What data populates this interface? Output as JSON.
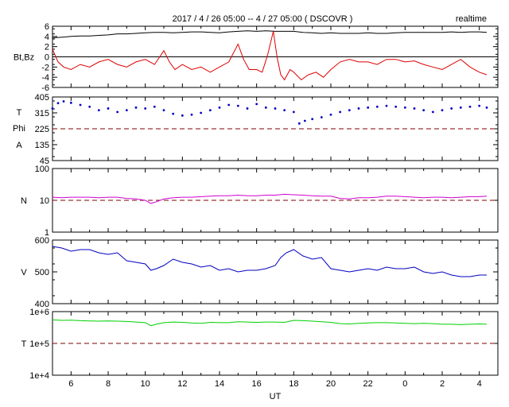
{
  "header": {
    "title": "2017 / 4 / 26   05:00 --  4 / 27  05:00 ( DSCOVR )",
    "status": "realtime"
  },
  "colors": {
    "bt": "#000000",
    "bz": "#e00000",
    "temp_series": "#0000c0",
    "density": "#d000d0",
    "speed": "#0000c0",
    "temperature": "#00d000",
    "reference_line": "#800000"
  },
  "chart_data": [
    {
      "type": "line",
      "panel": "magnetic-field",
      "ylabel": "Bt,Bz",
      "ylim": [
        -6,
        6
      ],
      "yticks": [
        "6",
        "4",
        "2",
        "0",
        "-2",
        "-4",
        "-6"
      ],
      "reference_y": 0,
      "series": [
        {
          "key": "bt",
          "x": [
            5.0,
            5.3,
            5.7,
            6.0,
            6.5,
            7.0,
            7.5,
            8.0,
            8.5,
            9.0,
            9.5,
            10.0,
            10.5,
            11.0,
            11.5,
            12.0,
            12.5,
            13.0,
            13.5,
            14.0,
            14.5,
            15.0,
            15.5,
            16.0,
            16.5,
            17.0,
            17.5,
            18.0,
            18.5,
            19.0,
            19.5,
            20.0,
            20.5,
            21.0,
            21.5,
            22.0,
            22.5,
            23.0,
            23.5,
            24.0,
            24.5,
            25.0,
            25.5,
            26.0,
            26.5,
            27.0,
            27.5,
            28.0,
            28.4
          ],
          "values": [
            3.7,
            3.8,
            3.9,
            4.0,
            4.1,
            4.1,
            4.2,
            4.3,
            4.5,
            4.5,
            4.6,
            4.7,
            4.8,
            4.8,
            4.7,
            4.8,
            4.9,
            4.9,
            4.8,
            4.7,
            4.9,
            5.0,
            5.1,
            5.0,
            5.1,
            5.0,
            5.0,
            5.0,
            4.8,
            4.7,
            4.6,
            4.7,
            4.6,
            4.6,
            4.6,
            4.7,
            4.6,
            4.6,
            4.7,
            4.8,
            4.8,
            4.8,
            4.8,
            4.8,
            4.9,
            4.8,
            4.9,
            4.9,
            4.8
          ]
        },
        {
          "key": "bz",
          "x": [
            5.0,
            5.3,
            5.6,
            6.0,
            6.5,
            7.0,
            7.5,
            8.0,
            8.5,
            9.0,
            9.5,
            10.0,
            10.5,
            11.0,
            11.3,
            11.6,
            12.0,
            12.5,
            13.0,
            13.5,
            14.0,
            14.5,
            15.0,
            15.3,
            15.6,
            16.0,
            16.3,
            16.6,
            16.9,
            17.1,
            17.3,
            17.5,
            17.8,
            18.0,
            18.4,
            18.8,
            19.2,
            19.6,
            20.0,
            20.5,
            21.0,
            21.5,
            22.0,
            22.5,
            23.0,
            23.5,
            24.0,
            24.5,
            25.0,
            25.5,
            26.0,
            26.5,
            27.0,
            27.5,
            28.0,
            28.4
          ],
          "values": [
            1.5,
            -1.0,
            -2.0,
            -2.5,
            -1.5,
            -2.0,
            -1.0,
            -0.5,
            -1.5,
            -2.0,
            -1.0,
            -0.5,
            -1.5,
            1.2,
            -1.0,
            -2.5,
            -1.5,
            -2.5,
            -2.0,
            -3.0,
            -2.0,
            -1.0,
            2.5,
            -0.5,
            -2.5,
            -2.5,
            -3.0,
            0.5,
            5.0,
            0.0,
            -3.5,
            -4.5,
            -2.5,
            -3.0,
            -4.5,
            -3.5,
            -3.0,
            -4.0,
            -2.5,
            -1.0,
            -0.5,
            -1.0,
            -1.0,
            -1.5,
            -0.5,
            -0.5,
            -1.0,
            -0.8,
            -1.5,
            -2.0,
            -2.5,
            -1.5,
            -0.5,
            -2.0,
            -3.0,
            -3.5
          ]
        }
      ]
    },
    {
      "type": "scatter",
      "panel": "temperature-phi",
      "ylabel_lines": [
        "T",
        "Phi",
        "A"
      ],
      "ylim": [
        45,
        405
      ],
      "yticks": [
        "405",
        "315",
        "225",
        "135",
        "45"
      ],
      "reference_y": 225,
      "series": [
        {
          "key": "temp_series",
          "x": [
            5.0,
            5.3,
            5.6,
            6.0,
            6.5,
            7.0,
            7.5,
            8.0,
            8.5,
            9.0,
            9.5,
            10.0,
            10.5,
            11.0,
            11.5,
            12.0,
            12.5,
            13.0,
            13.5,
            14.0,
            14.5,
            15.0,
            15.5,
            16.0,
            16.5,
            17.0,
            17.5,
            18.0,
            18.3,
            18.6,
            19.0,
            19.5,
            20.0,
            20.5,
            21.0,
            21.5,
            22.0,
            22.5,
            23.0,
            23.5,
            24.0,
            24.5,
            25.0,
            25.5,
            26.0,
            26.5,
            27.0,
            27.5,
            28.0,
            28.4
          ],
          "values": [
            340,
            370,
            380,
            372,
            360,
            350,
            330,
            340,
            320,
            330,
            345,
            340,
            350,
            330,
            310,
            300,
            305,
            315,
            330,
            345,
            360,
            355,
            340,
            365,
            345,
            340,
            330,
            320,
            255,
            270,
            280,
            290,
            305,
            320,
            330,
            340,
            345,
            350,
            355,
            350,
            345,
            340,
            330,
            320,
            330,
            340,
            345,
            350,
            355,
            345
          ]
        }
      ]
    },
    {
      "type": "line",
      "panel": "density",
      "ylabel": "N",
      "scale": "log",
      "ylim": [
        1,
        100
      ],
      "yticks": [
        "100",
        "10",
        "1"
      ],
      "reference_y": 10,
      "series": [
        {
          "key": "density",
          "x": [
            5.0,
            5.5,
            6.0,
            6.5,
            7.0,
            7.5,
            8.0,
            8.5,
            9.0,
            9.5,
            10.0,
            10.3,
            10.6,
            11.0,
            11.5,
            12.0,
            12.5,
            13.0,
            13.5,
            14.0,
            14.5,
            15.0,
            15.5,
            16.0,
            16.5,
            17.0,
            17.5,
            18.0,
            18.5,
            19.0,
            19.5,
            20.0,
            20.5,
            21.0,
            21.5,
            22.0,
            22.5,
            23.0,
            23.5,
            24.0,
            24.5,
            25.0,
            25.5,
            26.0,
            26.5,
            27.0,
            27.5,
            28.0,
            28.4
          ],
          "values": [
            12.5,
            12.0,
            12.5,
            12.5,
            12.5,
            12.0,
            12.5,
            12.5,
            11.5,
            11.0,
            10.0,
            8.0,
            9.0,
            11.0,
            12.0,
            12.5,
            12.5,
            13.0,
            13.5,
            14.0,
            14.0,
            14.5,
            14.0,
            14.0,
            14.5,
            14.5,
            15.5,
            15.0,
            14.5,
            14.0,
            13.5,
            13.5,
            11.5,
            11.0,
            12.0,
            12.0,
            12.5,
            13.5,
            13.5,
            13.0,
            12.5,
            12.0,
            12.5,
            12.5,
            12.0,
            12.5,
            13.0,
            13.0,
            13.5
          ]
        }
      ]
    },
    {
      "type": "line",
      "panel": "speed",
      "ylabel": "V",
      "ylim": [
        400,
        600
      ],
      "yticks": [
        "600",
        "500",
        "400"
      ],
      "series": [
        {
          "key": "speed",
          "x": [
            5.0,
            5.5,
            6.0,
            6.5,
            7.0,
            7.5,
            8.0,
            8.5,
            9.0,
            9.5,
            10.0,
            10.3,
            10.6,
            11.0,
            11.5,
            12.0,
            12.5,
            13.0,
            13.5,
            14.0,
            14.5,
            15.0,
            15.5,
            16.0,
            16.5,
            17.0,
            17.3,
            17.6,
            18.0,
            18.5,
            19.0,
            19.5,
            20.0,
            20.5,
            21.0,
            21.5,
            22.0,
            22.5,
            23.0,
            23.5,
            24.0,
            24.5,
            25.0,
            25.5,
            26.0,
            26.5,
            27.0,
            27.5,
            28.0,
            28.4
          ],
          "values": [
            580,
            575,
            565,
            570,
            570,
            560,
            555,
            560,
            535,
            530,
            525,
            505,
            510,
            520,
            540,
            530,
            525,
            515,
            520,
            505,
            510,
            500,
            505,
            505,
            510,
            520,
            545,
            560,
            570,
            550,
            540,
            545,
            510,
            505,
            500,
            505,
            510,
            505,
            515,
            510,
            510,
            515,
            500,
            495,
            500,
            490,
            485,
            485,
            490,
            490
          ]
        }
      ]
    },
    {
      "type": "line",
      "panel": "temperature",
      "ylabel": "T",
      "scale": "log",
      "ylim": [
        10000,
        1000000
      ],
      "yticks": [
        "1e+6",
        "1e+5",
        "1e+4"
      ],
      "reference_y": 100000,
      "xticks": [
        "6",
        "8",
        "10",
        "12",
        "14",
        "16",
        "18",
        "20",
        "22",
        "0",
        "2",
        "4"
      ],
      "xlabel": "UT",
      "series": [
        {
          "key": "temperature",
          "x": [
            5.0,
            5.5,
            6.0,
            6.5,
            7.0,
            7.5,
            8.0,
            8.5,
            9.0,
            9.5,
            10.0,
            10.3,
            10.6,
            11.0,
            11.5,
            12.0,
            12.5,
            13.0,
            13.5,
            14.0,
            14.5,
            15.0,
            15.5,
            16.0,
            16.5,
            17.0,
            17.5,
            18.0,
            18.5,
            19.0,
            19.5,
            20.0,
            20.5,
            21.0,
            21.5,
            22.0,
            22.5,
            23.0,
            23.5,
            24.0,
            24.5,
            25.0,
            25.5,
            26.0,
            26.5,
            27.0,
            27.5,
            28.0,
            28.4
          ],
          "values": [
            550000,
            530000,
            540000,
            520000,
            510000,
            500000,
            510000,
            500000,
            490000,
            470000,
            450000,
            360000,
            400000,
            450000,
            470000,
            460000,
            440000,
            430000,
            460000,
            450000,
            450000,
            480000,
            470000,
            460000,
            470000,
            470000,
            460000,
            530000,
            520000,
            500000,
            480000,
            460000,
            420000,
            410000,
            430000,
            440000,
            450000,
            450000,
            440000,
            430000,
            420000,
            430000,
            420000,
            400000,
            400000,
            390000,
            400000,
            410000,
            400000
          ]
        }
      ]
    }
  ]
}
